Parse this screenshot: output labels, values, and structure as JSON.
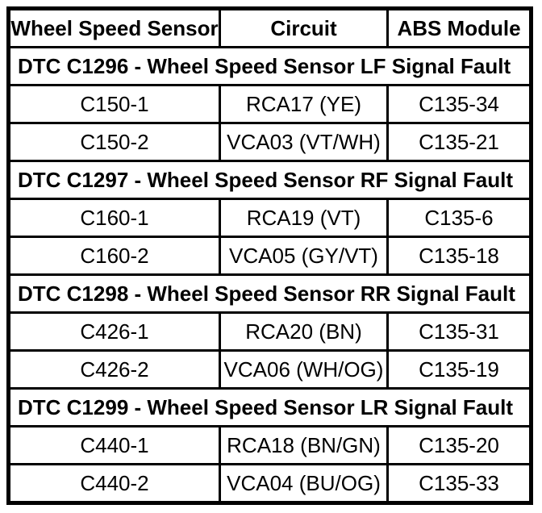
{
  "colors": {
    "text": "#000000",
    "background": "#ffffff",
    "border": "#000000"
  },
  "table": {
    "headers": [
      "Wheel Speed Sensor",
      "Circuit",
      "ABS Module"
    ],
    "sections": [
      {
        "title": "DTC C1296 - Wheel Speed Sensor LF Signal Fault",
        "rows": [
          [
            "C150-1",
            "RCA17 (YE)",
            "C135-34"
          ],
          [
            "C150-2",
            "VCA03 (VT/WH)",
            "C135-21"
          ]
        ]
      },
      {
        "title": "DTC C1297 - Wheel Speed Sensor RF Signal Fault",
        "rows": [
          [
            "C160-1",
            "RCA19 (VT)",
            "C135-6"
          ],
          [
            "C160-2",
            "VCA05 (GY/VT)",
            "C135-18"
          ]
        ]
      },
      {
        "title": "DTC C1298 - Wheel Speed Sensor RR Signal Fault",
        "rows": [
          [
            "C426-1",
            "RCA20 (BN)",
            "C135-31"
          ],
          [
            "C426-2",
            "VCA06 (WH/OG)",
            "C135-19"
          ]
        ]
      },
      {
        "title": "DTC C1299 - Wheel Speed Sensor LR Signal Fault",
        "rows": [
          [
            "C440-1",
            "RCA18 (BN/GN)",
            "C135-20"
          ],
          [
            "C440-2",
            "VCA04 (BU/OG)",
            "C135-33"
          ]
        ]
      }
    ]
  }
}
